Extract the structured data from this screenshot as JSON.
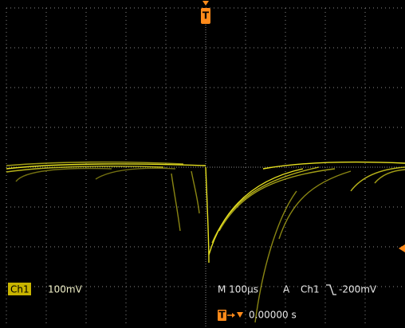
{
  "trigger_marker": "T",
  "channel": {
    "name": "Ch1",
    "scale": "100mV"
  },
  "timebase": {
    "label": "M 100µs",
    "mode": "A",
    "source": "Ch1",
    "level": "-200mV"
  },
  "trigger_position": {
    "icon": "T",
    "time": "0.00000 s"
  }
}
